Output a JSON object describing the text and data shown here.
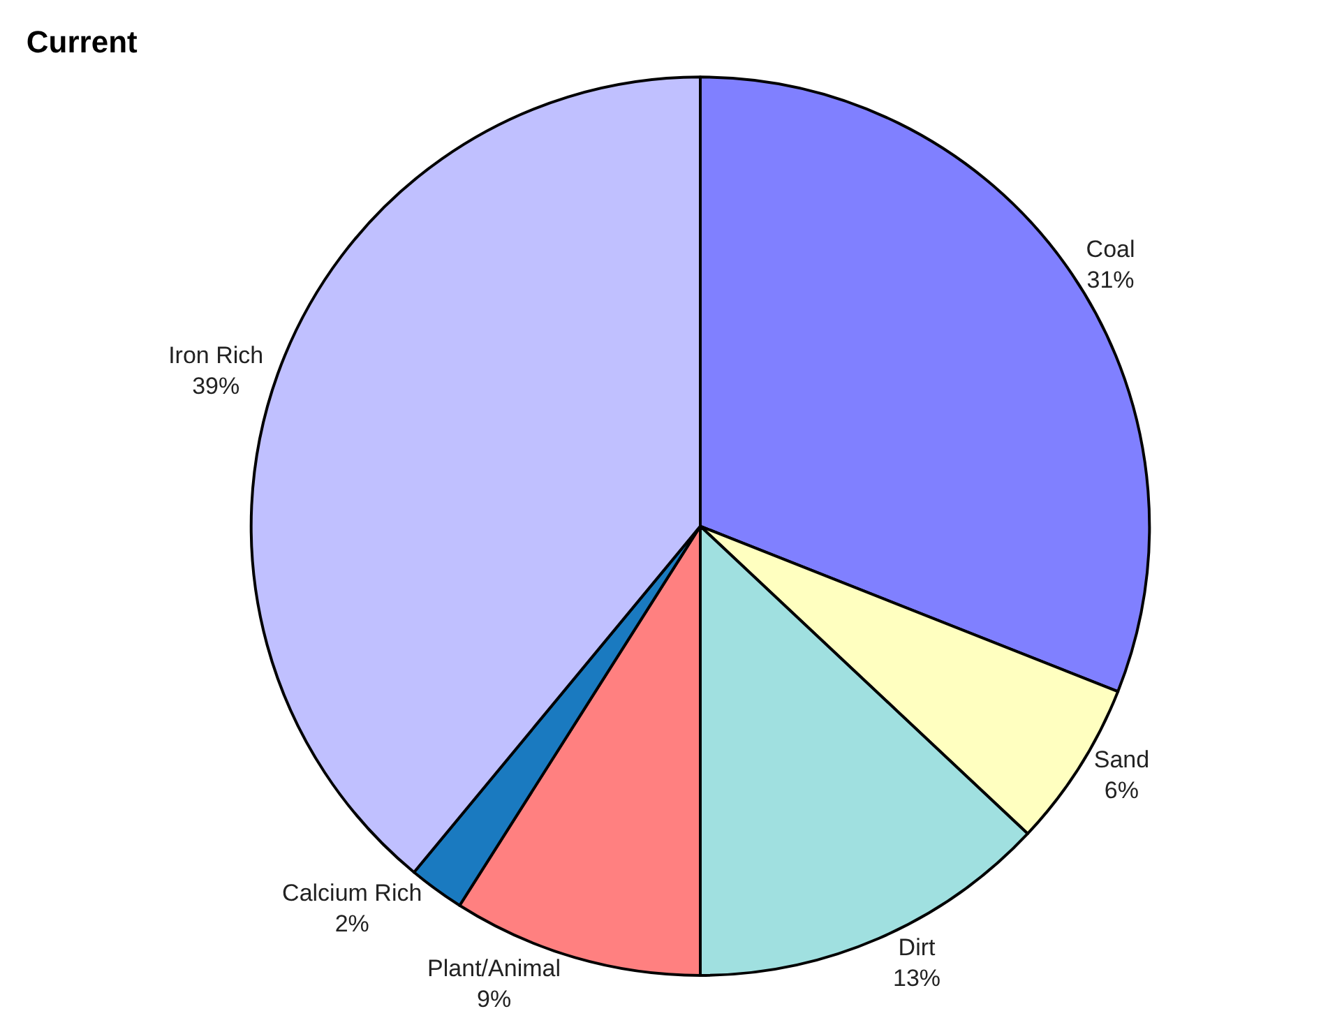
{
  "chart_data": {
    "type": "pie",
    "title": "Current",
    "categories": [
      "Coal",
      "Sand",
      "Dirt",
      "Plant/Animal",
      "Calcium Rich",
      "Iron Rich"
    ],
    "values": [
      31,
      6,
      13,
      9,
      2,
      39
    ],
    "value_labels": [
      "31%",
      "6%",
      "13%",
      "9%",
      "2%",
      "39%"
    ],
    "colors": [
      "#8080ff",
      "#ffffc0",
      "#a0e0e0",
      "#ff8080",
      "#1a7ac0",
      "#c0c0ff"
    ],
    "legend": false
  }
}
